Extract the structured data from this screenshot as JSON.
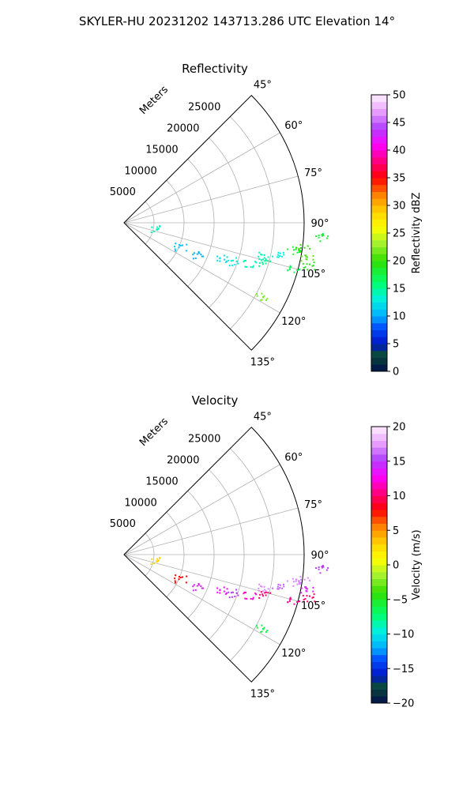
{
  "suptitle": "SKYLER-HU  20231202  143713.286 UTC Elevation 14°",
  "chart_data": [
    {
      "type": "scatter",
      "projection": "polar-sector",
      "title": "Reflectivity",
      "radial_label": "Meters",
      "radial_ticks": [
        5000,
        10000,
        15000,
        20000,
        25000
      ],
      "radial_range": [
        0,
        30000
      ],
      "theta_range_deg": [
        45,
        135
      ],
      "theta_ticks": [
        "45°",
        "60°",
        "75°",
        "90°",
        "105°",
        "120°",
        "135°"
      ],
      "grid": true,
      "colorbar": {
        "label": "Reflectivity dBZ",
        "range": [
          0,
          50
        ],
        "ticks": [
          "0",
          "5",
          "10",
          "15",
          "20",
          "25",
          "30",
          "35",
          "40",
          "45",
          "50"
        ]
      },
      "series": [
        {
          "points": [
            {
              "theta": 100,
              "r": 5500,
              "value": 14
            },
            {
              "theta": 113,
              "r": 10000,
              "value": 11
            },
            {
              "theta": 113,
              "r": 13500,
              "value": 10
            },
            {
              "theta": 110,
              "r": 17000,
              "value": 12
            },
            {
              "theta": 109,
              "r": 19500,
              "value": 13
            },
            {
              "theta": 108,
              "r": 22000,
              "value": 14
            },
            {
              "theta": 106,
              "r": 24500,
              "value": 15
            },
            {
              "theta": 103,
              "r": 24000,
              "value": 14
            },
            {
              "theta": 101,
              "r": 26000,
              "value": 13
            },
            {
              "theta": 99,
              "r": 28500,
              "value": 18
            },
            {
              "theta": 98,
              "r": 30000,
              "value": 20
            },
            {
              "theta": 101,
              "r": 31000,
              "value": 21
            },
            {
              "theta": 103,
              "r": 31500,
              "value": 19
            },
            {
              "theta": 105,
              "r": 29000,
              "value": 17
            },
            {
              "theta": 118,
              "r": 26000,
              "value": 22
            },
            {
              "theta": 94,
              "r": 33000,
              "value": 18
            }
          ]
        }
      ]
    },
    {
      "type": "scatter",
      "projection": "polar-sector",
      "title": "Velocity",
      "radial_label": "Meters",
      "radial_ticks": [
        5000,
        10000,
        15000,
        20000,
        25000
      ],
      "radial_range": [
        0,
        30000
      ],
      "theta_range_deg": [
        45,
        135
      ],
      "theta_ticks": [
        "45°",
        "60°",
        "75°",
        "90°",
        "105°",
        "120°",
        "135°"
      ],
      "grid": true,
      "colorbar": {
        "label": "Velocity (m/s)",
        "range": [
          -20,
          20
        ],
        "ticks": [
          "−20",
          "−15",
          "−10",
          "−5",
          "0",
          "5",
          "10",
          "15",
          "20"
        ]
      },
      "series": [
        {
          "points": [
            {
              "theta": 100,
              "r": 5500,
              "value": 3
            },
            {
              "theta": 113,
              "r": 10000,
              "value": 8
            },
            {
              "theta": 113,
              "r": 13500,
              "value": 14
            },
            {
              "theta": 110,
              "r": 17000,
              "value": 13
            },
            {
              "theta": 109,
              "r": 19500,
              "value": 15
            },
            {
              "theta": 108,
              "r": 22000,
              "value": 12
            },
            {
              "theta": 106,
              "r": 24500,
              "value": 10
            },
            {
              "theta": 103,
              "r": 24000,
              "value": 17
            },
            {
              "theta": 101,
              "r": 26000,
              "value": 16
            },
            {
              "theta": 99,
              "r": 28500,
              "value": 17
            },
            {
              "theta": 98,
              "r": 30000,
              "value": 17
            },
            {
              "theta": 101,
              "r": 31000,
              "value": 14
            },
            {
              "theta": 103,
              "r": 31500,
              "value": 10
            },
            {
              "theta": 105,
              "r": 29000,
              "value": 11
            },
            {
              "theta": 118,
              "r": 26000,
              "value": -6
            },
            {
              "theta": 94,
              "r": 33000,
              "value": 15
            }
          ]
        }
      ]
    }
  ]
}
